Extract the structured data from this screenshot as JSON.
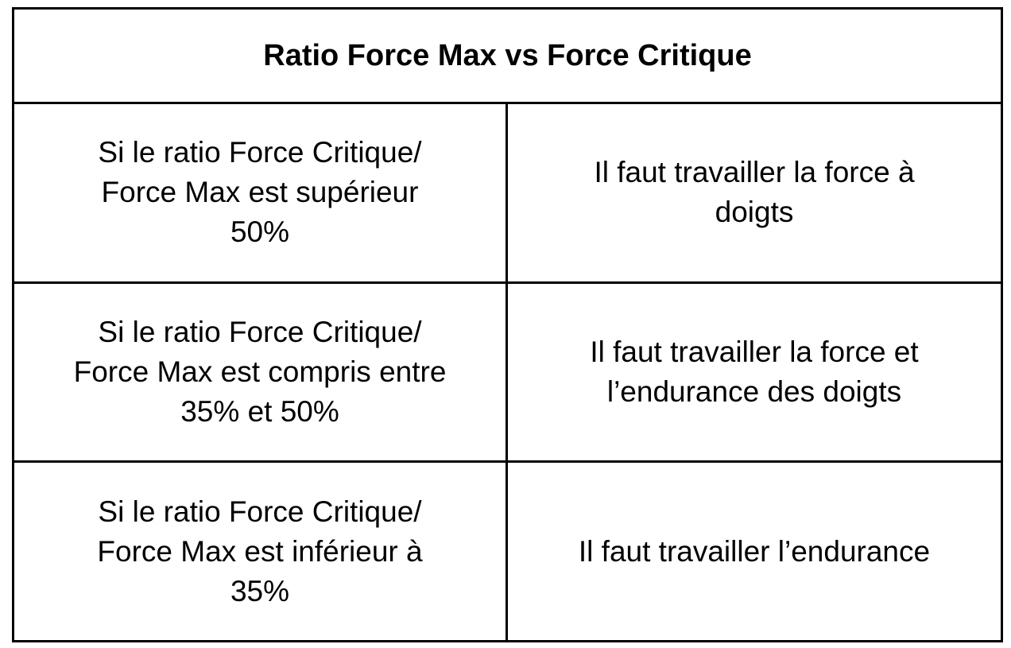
{
  "table": {
    "title": "Ratio Force Max vs Force Critique",
    "rows": [
      {
        "condition": "Si le ratio Force Critique/\nForce Max est supérieur\n50%",
        "action": "Il faut travailler la force à\ndoigts"
      },
      {
        "condition": "Si le ratio Force Critique/\nForce Max est compris entre\n35% et  50%",
        "action": "Il faut travailler la force et\nl’endurance des doigts"
      },
      {
        "condition": "Si le ratio Force Critique/\nForce Max est inférieur à\n35%",
        "action": "Il faut travailler l’endurance"
      }
    ]
  }
}
